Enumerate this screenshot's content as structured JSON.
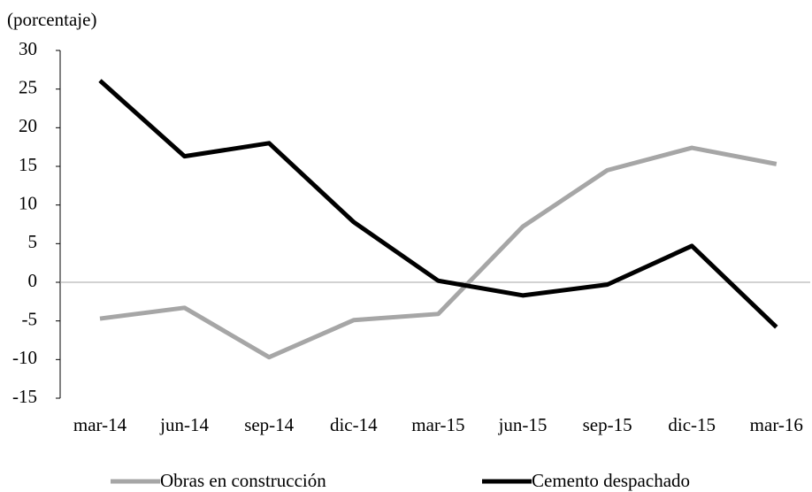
{
  "chart_data": {
    "type": "line",
    "y_label": "(porcentaje)",
    "categories": [
      "mar-14",
      "jun-14",
      "sep-14",
      "dic-14",
      "mar-15",
      "jun-15",
      "sep-15",
      "dic-15",
      "mar-16"
    ],
    "series": [
      {
        "name": "Obras en construcción",
        "color": "#a6a6a6",
        "values": [
          -4.7,
          -3.3,
          -9.7,
          -4.9,
          -4.1,
          7.2,
          14.5,
          17.4,
          15.3
        ]
      },
      {
        "name": "Cemento despachado",
        "color": "#000000",
        "values": [
          26.1,
          16.3,
          18.0,
          7.8,
          0.2,
          -1.7,
          -0.3,
          4.7,
          -5.8
        ]
      }
    ],
    "ylim": [
      -15,
      30
    ],
    "yticks": [
      -15,
      -10,
      -5,
      0,
      5,
      10,
      15,
      20,
      25,
      30
    ],
    "zero_line": true,
    "legend": "bottom"
  }
}
